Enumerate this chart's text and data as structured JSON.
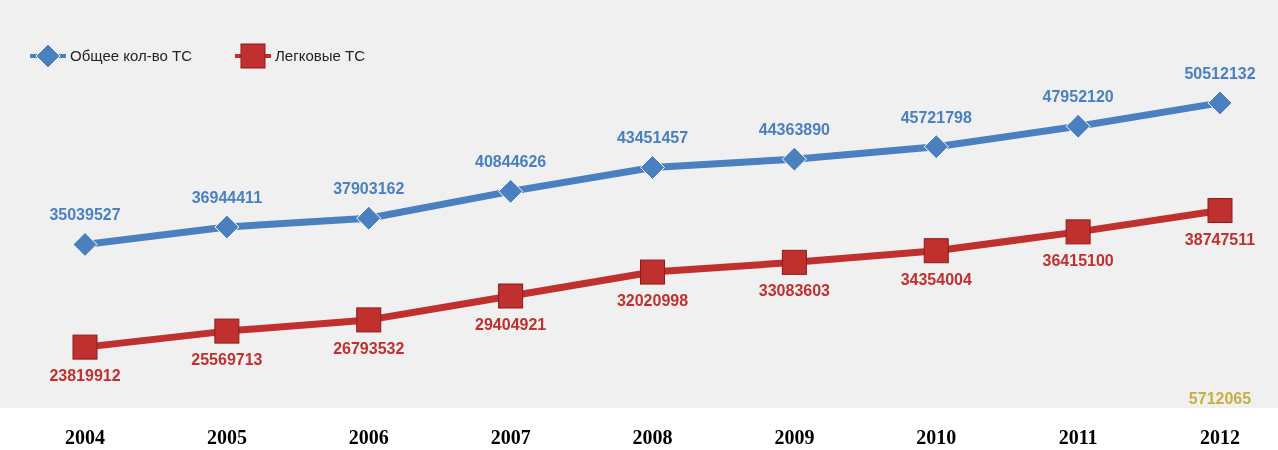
{
  "chart_data": {
    "type": "line",
    "categories": [
      "2004",
      "2005",
      "2006",
      "2007",
      "2008",
      "2009",
      "2010",
      "2011",
      "2012"
    ],
    "series": [
      {
        "name": "Общее кол-во ТС",
        "color": "#4a7fc0",
        "marker": "diamond",
        "values": [
          35039527,
          36944411,
          37903162,
          40844626,
          43451457,
          44363890,
          45721798,
          47952120,
          50512132
        ]
      },
      {
        "name": "Легковые ТС",
        "color": "#c0302e",
        "marker": "square",
        "values": [
          23819912,
          25569713,
          26793532,
          29404921,
          32020998,
          33083603,
          34354004,
          36415100,
          38747511
        ]
      }
    ],
    "data_labels": true,
    "legend": "top left",
    "annotations": [
      "5712065"
    ]
  }
}
